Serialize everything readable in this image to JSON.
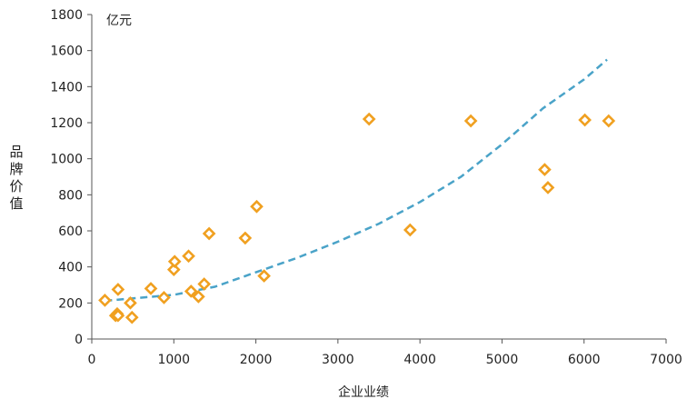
{
  "chart_data": {
    "type": "scatter",
    "xlabel": "企业业绩",
    "ylabel": "品牌价值",
    "yunit": "亿元",
    "xlim": [
      0,
      7000
    ],
    "ylim": [
      0,
      1800
    ],
    "xticks": [
      0,
      1000,
      2000,
      3000,
      4000,
      5000,
      6000,
      7000
    ],
    "yticks": [
      0,
      200,
      400,
      600,
      800,
      1000,
      1200,
      1400,
      1600,
      1800
    ],
    "grid": false,
    "legend": "none",
    "colors": {
      "points": "#f0a020",
      "trend": "#4aa3c8",
      "axis": "#555555"
    },
    "series": [
      {
        "marker": "diamond-hollow",
        "points": [
          [
            160,
            215
          ],
          [
            290,
            130
          ],
          [
            310,
            140
          ],
          [
            320,
            130
          ],
          [
            320,
            275
          ],
          [
            470,
            200
          ],
          [
            490,
            120
          ],
          [
            720,
            280
          ],
          [
            880,
            230
          ],
          [
            1000,
            385
          ],
          [
            1010,
            430
          ],
          [
            1180,
            460
          ],
          [
            1210,
            265
          ],
          [
            1300,
            235
          ],
          [
            1370,
            305
          ],
          [
            1430,
            585
          ],
          [
            1870,
            560
          ],
          [
            2010,
            735
          ],
          [
            2100,
            350
          ],
          [
            3380,
            1220
          ],
          [
            3880,
            605
          ],
          [
            4620,
            1210
          ],
          [
            5520,
            940
          ],
          [
            5560,
            840
          ],
          [
            6010,
            1215
          ],
          [
            6300,
            1210
          ]
        ]
      }
    ],
    "trendline": {
      "style": "dashed",
      "points": [
        [
          160,
          212
        ],
        [
          1000,
          245
        ],
        [
          1500,
          290
        ],
        [
          2000,
          370
        ],
        [
          2500,
          450
        ],
        [
          3000,
          540
        ],
        [
          3500,
          640
        ],
        [
          4000,
          760
        ],
        [
          4500,
          900
        ],
        [
          5000,
          1080
        ],
        [
          5500,
          1280
        ],
        [
          6000,
          1440
        ],
        [
          6280,
          1550
        ]
      ]
    }
  }
}
